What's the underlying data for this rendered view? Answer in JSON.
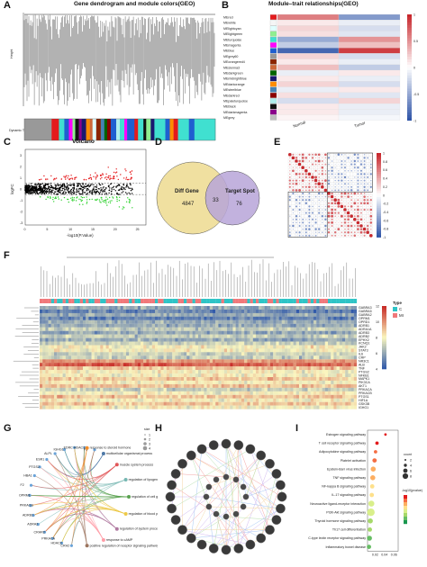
{
  "panels": {
    "A": {
      "label": "A",
      "title": "Gene dendrogram and module colors(GEO)",
      "ylabel": "Height",
      "track_label": "Dynamic Tree Cut"
    },
    "B": {
      "label": "B",
      "title": "Module–trait relationships(GEO)",
      "modules": [
        "MEred",
        "MEwhite",
        "MElightcyan",
        "MElightgreen",
        "MEturquoise",
        "MEmagenta",
        "MEblue",
        "MEgrey60",
        "MEorangered4",
        "MEsienna3",
        "MEdarkgreen",
        "MEmidnightblue",
        "MEdarkorange",
        "MEsteelblue",
        "MEdarkred",
        "MEpaleturquoise",
        "MEblack",
        "MEdarkmagenta",
        "MEgrey"
      ],
      "module_colors": [
        "#e41a1c",
        "#f5f5f5",
        "#e0ffff",
        "#90ee90",
        "#40e0d0",
        "#ff00ff",
        "#1f5fd0",
        "#999999",
        "#8b2500",
        "#cd6839",
        "#006400",
        "#191970",
        "#ff8c00",
        "#4682b4",
        "#8b0000",
        "#afeeee",
        "#111111",
        "#8b008b",
        "#bebebe"
      ],
      "traits": [
        "Normal",
        "Tumor"
      ],
      "scale_ticks": [
        "1",
        "0.5",
        "0",
        "-0.5",
        "-1"
      ]
    },
    "C": {
      "label": "C",
      "title": "Volcano",
      "ylabel": "logFC",
      "xlabel": "-log10(P.Value)",
      "xticks": [
        "0",
        "5",
        "10",
        "15",
        "20",
        "25"
      ],
      "yticks": [
        "3",
        "2",
        "1",
        "0",
        "-1",
        "-2",
        "-3"
      ]
    },
    "D": {
      "label": "D",
      "left_set": "Diff Gene",
      "right_set": "Target Spot",
      "left_only": "4847",
      "overlap": "33",
      "right_only": "76"
    },
    "E": {
      "label": "E",
      "scale_ticks": [
        "1",
        "0.8",
        "0.6",
        "0.4",
        "0.2",
        "0",
        "-0.2",
        "-0.4",
        "-0.6",
        "-0.8",
        "-1"
      ]
    },
    "F": {
      "label": "F",
      "legend_title": "Type",
      "legend_items": [
        "C",
        "MI"
      ],
      "legend_colors": [
        "#2ec4c6",
        "#f0787a"
      ],
      "scale_ticks": [
        "12",
        "10",
        "8",
        "6",
        "4"
      ],
      "genes": [
        "GABRA3",
        "GABRA5",
        "GABRA2",
        "OPRM1",
        "OPRD1",
        "ADRB1",
        "ADRA1A",
        "ADRB3",
        "ADRB2",
        "EPHX2",
        "KCNQ1",
        "JAK2",
        "STAT3",
        "IL6",
        "CRP",
        "NR3C1",
        "ALB",
        "TNF",
        "PTGS2",
        "NFKB1",
        "MAPK1",
        "PIK3CA",
        "AKT1",
        "PRKACA",
        "PRKACB",
        "PTGS1",
        "HIF1A",
        "GSK3B",
        "IGHG1"
      ]
    },
    "G": {
      "label": "G",
      "terms": [
        "response to steroid hormone",
        "multicellular organismal process",
        "muscle system process",
        "regulation of lipogenesis",
        "regulation of cell growth",
        "regulation of blood pressure",
        "regulation of system process",
        "response to cAMP",
        "positive regulation of receptor signaling pathway via JAK-STAT"
      ],
      "genes": [
        "CRH2",
        "HDAC2",
        "PRKACA",
        "CRHR2",
        "ADRA2",
        "ADRB1",
        "PRKACG",
        "OPRM1",
        "F2",
        "HBA1",
        "PTGS2",
        "ESR1",
        "ALPL",
        "IGHG1",
        "EDRC",
        "HDAC1",
        "F5"
      ],
      "legend_title": "size",
      "legend_ticks": [
        "1",
        "2",
        "3",
        "4"
      ]
    },
    "H": {
      "label": "H"
    },
    "I": {
      "label": "I",
      "pathways": [
        "Estrogen signaling pathway",
        "T cell receptor signaling pathway",
        "Adipocytokine signaling pathway",
        "Platelet activation",
        "Epstein-Barr virus infection",
        "TNF signaling pathway",
        "NF-kappa B signaling pathway",
        "IL-17 signaling pathway",
        "Neuroactive ligand-receptor interaction",
        "PI3K-Akt signaling pathway",
        "Thyroid hormone signaling pathway",
        "Th17 cell differentiation",
        "C-type lectin receptor signaling pathway",
        "Inflammatory bowel disease"
      ],
      "xticks": [
        "0.02",
        "0.04",
        "0.06"
      ],
      "count_title": "count",
      "count_ticks": [
        "2",
        "4",
        "6",
        "8"
      ],
      "p_title": "-log10(pvalue)"
    }
  },
  "chart_data": [
    {
      "type": "scatter",
      "panel": "C",
      "title": "Volcano",
      "xlabel": "-log10(P.Value)",
      "ylabel": "logFC",
      "xlim": [
        0,
        27
      ],
      "ylim": [
        -3.2,
        3.5
      ],
      "threshold_logfc": [
        -0.5,
        0.5
      ],
      "series": [
        {
          "color": "#e41a1c"
        },
        {
          "color": "#2fd12f"
        },
        {
          "color": "#000000"
        }
      ]
    },
    {
      "type": "scatter",
      "panel": "I",
      "pathways": [
        "Estrogen signaling pathway",
        "T cell receptor signaling pathway",
        "Adipocytokine signaling pathway",
        "Platelet activation",
        "Epstein-Barr virus infection",
        "TNF signaling pathway",
        "NF-kappa B signaling pathway",
        "IL-17 signaling pathway",
        "Neuroactive ligand-receptor interaction",
        "PI3K-Akt signaling pathway",
        "Thyroid hormone signaling pathway",
        "Th17 cell differentiation",
        "C-type lectin receptor signaling pathway",
        "Inflammatory bowel disease"
      ],
      "x": [
        0.043,
        0.025,
        0.022,
        0.02,
        0.017,
        0.016,
        0.015,
        0.014,
        0.013,
        0.012,
        0.011,
        0.01,
        0.009,
        0.008
      ],
      "count": [
        1,
        2,
        2,
        3,
        4,
        4,
        3,
        3,
        5,
        7,
        4,
        3,
        4,
        3
      ]
    }
  ]
}
